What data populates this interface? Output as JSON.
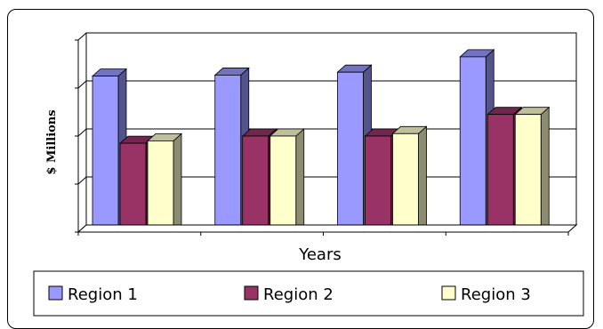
{
  "chart_data": {
    "type": "bar",
    "title": "",
    "xlabel": "Years",
    "ylabel": "$ Millions",
    "categories": [
      "",
      "",
      "",
      ""
    ],
    "ylim": [
      0,
      4
    ],
    "grid": true,
    "legend_position": "bottom",
    "series": [
      {
        "name": "Region 1",
        "color": "#9999ff",
        "values": [
          3.25,
          3.27,
          3.33,
          3.65
        ]
      },
      {
        "name": "Region 2",
        "color": "#993366",
        "values": [
          1.85,
          2.0,
          2.0,
          2.45
        ]
      },
      {
        "name": "Region 3",
        "color": "#ffffcc",
        "values": [
          1.9,
          2.0,
          2.05,
          2.45
        ]
      }
    ]
  }
}
